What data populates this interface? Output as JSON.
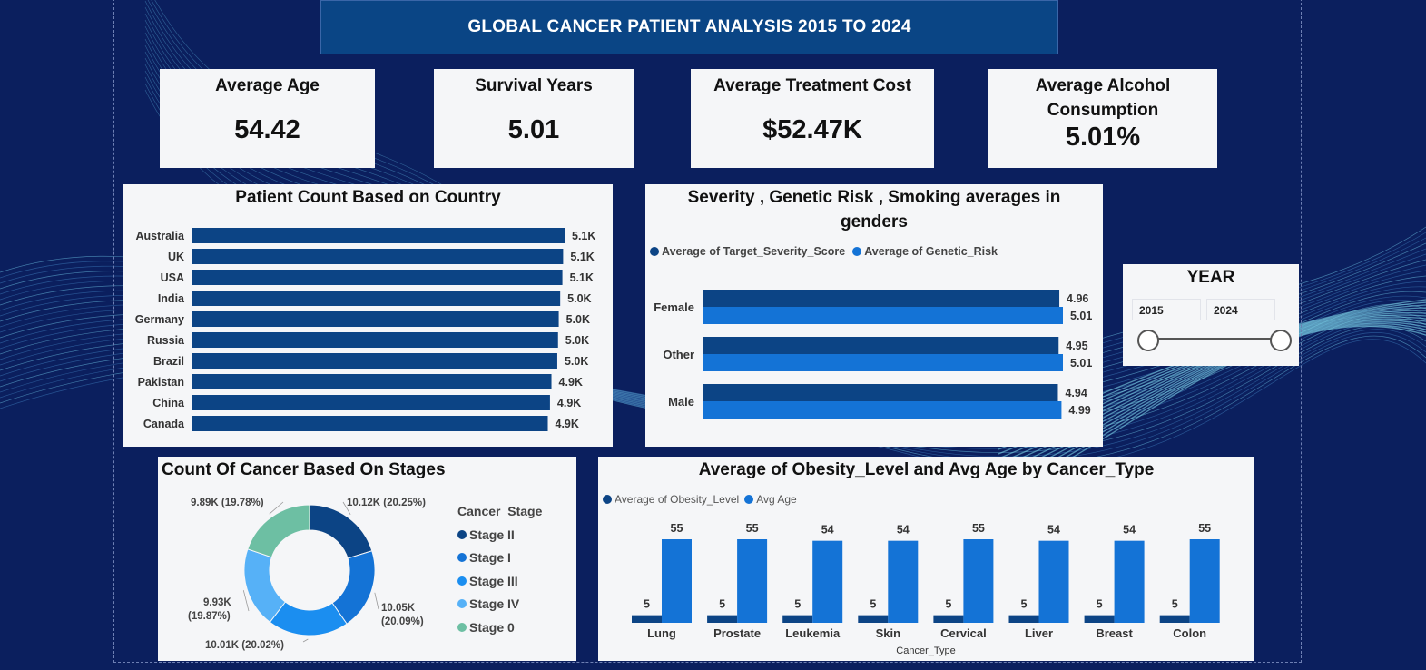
{
  "title": "GLOBAL CANCER PATIENT ANALYSIS 2015 TO 2024",
  "kpis": [
    {
      "label": "Average Age",
      "value": "54.42"
    },
    {
      "label": "Survival Years",
      "value": "5.01"
    },
    {
      "label": "Average Treatment Cost",
      "value": "$52.47K"
    },
    {
      "label": "Average Alcohol Consumption",
      "value": "5.01%"
    }
  ],
  "slicer": {
    "title": "YEAR",
    "start": "2015",
    "end": "2024",
    "range": [
      2015,
      2024
    ]
  },
  "colors": {
    "background": "#0b1f5e",
    "banner": "#0a4585",
    "dark_blue": "#0c4485",
    "mid_blue": "#1473d6",
    "bright_blue": "#1b8ef0",
    "light_blue": "#56b1f7",
    "teal": "#6dbfa3",
    "card": "#f5f6f8"
  },
  "chart_data": [
    {
      "id": "country",
      "type": "bar",
      "orientation": "horizontal",
      "title": "Patient Count Based on Country",
      "categories": [
        "Australia",
        "UK",
        "USA",
        "India",
        "Germany",
        "Russia",
        "Brazil",
        "Pakistan",
        "China",
        "Canada"
      ],
      "values": [
        5100,
        5080,
        5070,
        5040,
        5020,
        5010,
        5000,
        4920,
        4900,
        4870
      ],
      "labels": [
        "5.1K",
        "5.1K",
        "5.1K",
        "5.0K",
        "5.0K",
        "5.0K",
        "5.0K",
        "4.9K",
        "4.9K",
        "4.9K"
      ],
      "color": "#0c4485"
    },
    {
      "id": "gender",
      "type": "bar",
      "orientation": "horizontal",
      "title": "Severity , Genetic Risk , Smoking averages in genders",
      "categories": [
        "Female",
        "Other",
        "Male"
      ],
      "series": [
        {
          "name": "Average of Target_Severity_Score",
          "values": [
            4.96,
            4.95,
            4.94
          ],
          "color": "#0c4485"
        },
        {
          "name": "Average of Genetic_Risk",
          "values": [
            5.01,
            5.01,
            4.99
          ],
          "color": "#1473d6"
        }
      ],
      "legend": "top-left"
    },
    {
      "id": "stages",
      "type": "pie",
      "title": "Count Of Cancer Based On Stages",
      "legend_title": "Cancer_Stage",
      "categories": [
        "Stage II",
        "Stage I",
        "Stage III",
        "Stage IV",
        "Stage 0"
      ],
      "values": [
        10120,
        10050,
        10010,
        9930,
        9890
      ],
      "labels": [
        "10.12K (20.25%)",
        "10.05K (20.09%)",
        "10.01K (20.02%)",
        "9.93K (19.87%)",
        "9.89K (19.78%)"
      ],
      "colors": [
        "#0c4485",
        "#1473d6",
        "#1b8ef0",
        "#56b1f7",
        "#6dbfa3"
      ],
      "legend": "right"
    },
    {
      "id": "cancer_type",
      "type": "bar",
      "title": "Average of Obesity_Level and Avg Age by Cancer_Type",
      "xlabel": "Cancer_Type",
      "categories": [
        "Lung",
        "Prostate",
        "Leukemia",
        "Skin",
        "Cervical",
        "Liver",
        "Breast",
        "Colon"
      ],
      "series": [
        {
          "name": "Average of Obesity_Level",
          "values": [
            5,
            5,
            5,
            5,
            5,
            5,
            5,
            5
          ],
          "color": "#0c4485"
        },
        {
          "name": "Avg Age",
          "values": [
            55,
            55,
            54,
            54,
            55,
            54,
            54,
            55
          ],
          "color": "#1473d6"
        }
      ],
      "legend": "top-left"
    }
  ]
}
